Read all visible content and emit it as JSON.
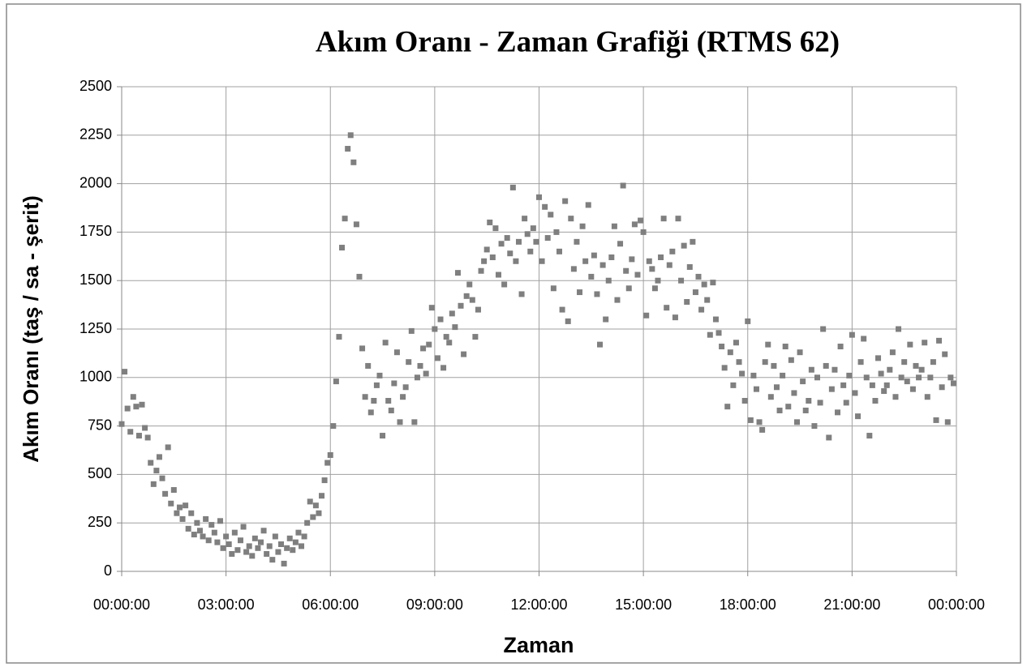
{
  "chart_data": {
    "type": "scatter",
    "title": "Akım Oranı - Zaman Grafiği (RTMS 62)",
    "x_label": "Zaman",
    "y_label": "Akım Oranı (taş / sa - şerit)",
    "color": "#7f7f7f",
    "grid": true,
    "xlim": [
      0,
      1440
    ],
    "xticks": [
      {
        "value": 0,
        "label": "00:00:00"
      },
      {
        "value": 180,
        "label": "03:00:00"
      },
      {
        "value": 360,
        "label": "06:00:00"
      },
      {
        "value": 540,
        "label": "09:00:00"
      },
      {
        "value": 720,
        "label": "12:00:00"
      },
      {
        "value": 900,
        "label": "15:00:00"
      },
      {
        "value": 1080,
        "label": "18:00:00"
      },
      {
        "value": 1260,
        "label": "21:00:00"
      },
      {
        "value": 1440,
        "label": "00:00:00"
      }
    ],
    "ylim": [
      0,
      2500
    ],
    "yticks": [
      0,
      250,
      500,
      750,
      1000,
      1250,
      1500,
      1750,
      2000,
      2250,
      2500
    ],
    "x": [
      0,
      5,
      10,
      15,
      20,
      25,
      30,
      35,
      40,
      45,
      50,
      55,
      60,
      65,
      70,
      75,
      80,
      85,
      90,
      95,
      100,
      105,
      110,
      115,
      120,
      125,
      130,
      135,
      140,
      145,
      150,
      155,
      160,
      165,
      170,
      175,
      180,
      185,
      190,
      195,
      200,
      205,
      210,
      215,
      220,
      225,
      230,
      235,
      240,
      245,
      250,
      255,
      260,
      265,
      270,
      275,
      280,
      285,
      290,
      295,
      300,
      305,
      310,
      315,
      320,
      325,
      330,
      335,
      340,
      345,
      350,
      355,
      360,
      365,
      370,
      375,
      380,
      385,
      390,
      395,
      400,
      405,
      410,
      415,
      420,
      425,
      430,
      435,
      440,
      445,
      450,
      455,
      460,
      465,
      470,
      475,
      480,
      485,
      490,
      495,
      500,
      505,
      510,
      515,
      520,
      525,
      530,
      535,
      540,
      545,
      550,
      555,
      560,
      565,
      570,
      575,
      580,
      585,
      590,
      595,
      600,
      605,
      610,
      615,
      620,
      625,
      630,
      635,
      640,
      645,
      650,
      655,
      660,
      665,
      670,
      675,
      680,
      685,
      690,
      695,
      700,
      705,
      710,
      715,
      720,
      725,
      730,
      735,
      740,
      745,
      750,
      755,
      760,
      765,
      770,
      775,
      780,
      785,
      790,
      795,
      800,
      805,
      810,
      815,
      820,
      825,
      830,
      835,
      840,
      845,
      850,
      855,
      860,
      865,
      870,
      875,
      880,
      885,
      890,
      895,
      900,
      905,
      910,
      915,
      920,
      925,
      930,
      935,
      940,
      945,
      950,
      955,
      960,
      965,
      970,
      975,
      980,
      985,
      990,
      995,
      1000,
      1005,
      1010,
      1015,
      1020,
      1025,
      1030,
      1035,
      1040,
      1045,
      1050,
      1055,
      1060,
      1065,
      1070,
      1075,
      1080,
      1085,
      1090,
      1095,
      1100,
      1105,
      1110,
      1115,
      1120,
      1125,
      1130,
      1135,
      1140,
      1145,
      1150,
      1155,
      1160,
      1165,
      1170,
      1175,
      1180,
      1185,
      1190,
      1195,
      1200,
      1205,
      1210,
      1215,
      1220,
      1225,
      1230,
      1235,
      1240,
      1245,
      1250,
      1255,
      1260,
      1265,
      1270,
      1275,
      1280,
      1285,
      1290,
      1295,
      1300,
      1305,
      1310,
      1315,
      1320,
      1325,
      1330,
      1335,
      1340,
      1345,
      1350,
      1355,
      1360,
      1365,
      1370,
      1375,
      1380,
      1385,
      1390,
      1395,
      1400,
      1405,
      1410,
      1415,
      1420,
      1425,
      1430,
      1435
    ],
    "values": [
      760,
      1030,
      840,
      720,
      900,
      850,
      700,
      860,
      740,
      690,
      560,
      450,
      520,
      590,
      480,
      400,
      640,
      350,
      420,
      300,
      330,
      270,
      340,
      220,
      300,
      190,
      250,
      210,
      180,
      270,
      160,
      240,
      200,
      150,
      260,
      120,
      180,
      140,
      90,
      200,
      110,
      160,
      230,
      100,
      130,
      80,
      170,
      120,
      150,
      210,
      90,
      130,
      60,
      180,
      100,
      140,
      40,
      120,
      170,
      110,
      150,
      200,
      130,
      180,
      250,
      360,
      280,
      340,
      300,
      390,
      470,
      560,
      600,
      750,
      980,
      1210,
      1670,
      1820,
      2180,
      2250,
      2110,
      1790,
      1520,
      1150,
      900,
      1060,
      820,
      880,
      960,
      1010,
      700,
      1180,
      880,
      830,
      970,
      1130,
      770,
      900,
      950,
      1080,
      1240,
      770,
      1000,
      1060,
      1150,
      1020,
      1170,
      1360,
      1250,
      1100,
      1300,
      1050,
      1210,
      1180,
      1330,
      1260,
      1540,
      1370,
      1120,
      1420,
      1480,
      1400,
      1210,
      1350,
      1550,
      1600,
      1660,
      1800,
      1620,
      1770,
      1530,
      1690,
      1480,
      1720,
      1640,
      1980,
      1600,
      1700,
      1430,
      1820,
      1740,
      1650,
      1770,
      1700,
      1930,
      1600,
      1880,
      1720,
      1840,
      1460,
      1750,
      1650,
      1350,
      1910,
      1290,
      1820,
      1560,
      1700,
      1440,
      1780,
      1600,
      1890,
      1520,
      1630,
      1430,
      1170,
      1580,
      1300,
      1500,
      1620,
      1780,
      1400,
      1690,
      1990,
      1550,
      1460,
      1610,
      1790,
      1530,
      1810,
      1750,
      1320,
      1600,
      1560,
      1460,
      1500,
      1620,
      1820,
      1360,
      1580,
      1650,
      1310,
      1820,
      1500,
      1680,
      1390,
      1570,
      1700,
      1440,
      1520,
      1350,
      1480,
      1400,
      1220,
      1490,
      1300,
      1230,
      1160,
      1050,
      850,
      1130,
      960,
      1180,
      1080,
      1020,
      880,
      1290,
      780,
      1010,
      940,
      770,
      730,
      1080,
      1170,
      900,
      1060,
      950,
      830,
      1010,
      1160,
      850,
      1090,
      920,
      770,
      1130,
      980,
      830,
      880,
      1040,
      750,
      1000,
      870,
      1250,
      1060,
      690,
      940,
      1040,
      820,
      1160,
      960,
      870,
      1010,
      1220,
      920,
      800,
      1080,
      1200,
      1000,
      700,
      960,
      880,
      1100,
      1020,
      930,
      960,
      1040,
      1130,
      900,
      1250,
      1000,
      1080,
      980,
      1170,
      940,
      1060,
      1000,
      1040,
      1180,
      900,
      1000,
      1080,
      780,
      1190,
      950,
      1120,
      770,
      1000,
      970
    ]
  }
}
